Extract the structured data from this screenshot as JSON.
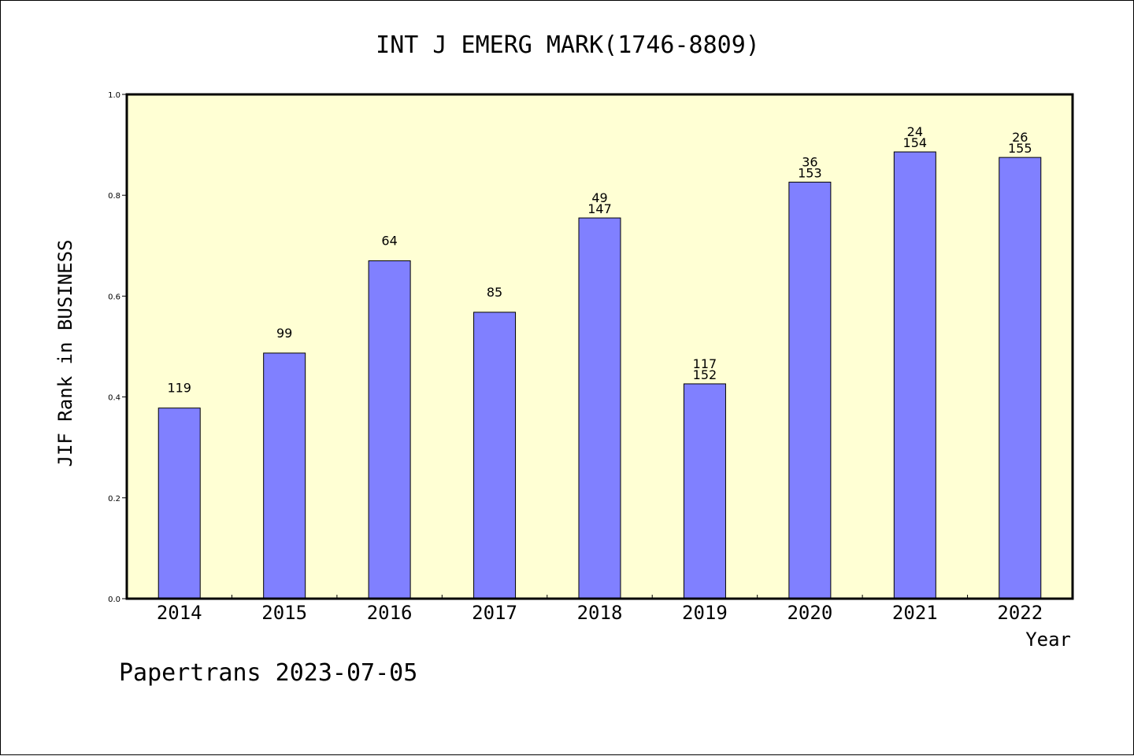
{
  "chart_data": {
    "type": "bar",
    "title": "INT J EMERG MARK(1746-8809)",
    "ylabel": "JIF Rank in BUSINESS",
    "xlabel": "Year",
    "categories": [
      "2014",
      "2015",
      "2016",
      "2017",
      "2018",
      "2019",
      "2020",
      "2021",
      "2022"
    ],
    "values": [
      0.378,
      0.487,
      0.67,
      0.568,
      0.755,
      0.426,
      0.826,
      0.886,
      0.875
    ],
    "rank_labels": [
      "119",
      "99",
      "64",
      "85",
      "49",
      "117",
      "36",
      "24",
      "26"
    ],
    "total_labels": [
      "",
      "",
      "",
      "",
      "147",
      "152",
      "153",
      "154",
      "155"
    ],
    "ylim": [
      0,
      1.0
    ],
    "yticks": [
      "0.0",
      "0.2",
      "0.4",
      "0.6",
      "0.8",
      "1.0"
    ],
    "grid": false,
    "colors": {
      "bar_fill": "#8080ff",
      "bar_stroke": "#000000",
      "plot_background": "#ffffd4",
      "page_background": "#ffffff"
    }
  },
  "footer": {
    "text": "Papertrans 2023-07-05"
  }
}
